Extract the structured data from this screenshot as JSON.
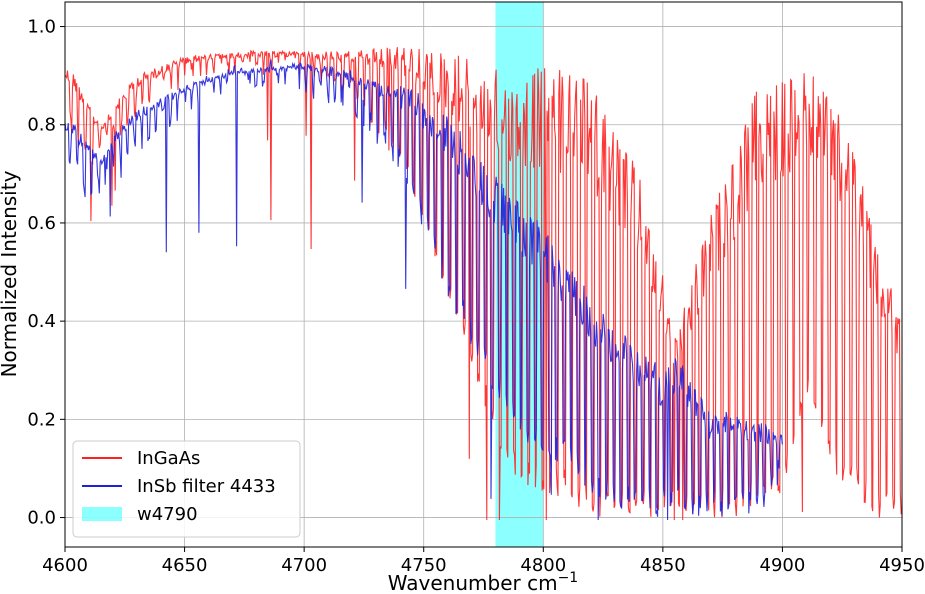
{
  "chart_data": {
    "type": "line",
    "xlabel": "Wavenumber cm",
    "xlabel_sup": "−1",
    "ylabel": "Normalized Intensity",
    "xlim": [
      4600,
      4950
    ],
    "ylim": [
      -0.06,
      1.05
    ],
    "xticks": [
      4600,
      4650,
      4700,
      4750,
      4800,
      4850,
      4900,
      4950
    ],
    "yticks": [
      0.0,
      0.2,
      0.4,
      0.6,
      0.8,
      1.0
    ],
    "xtick_labels": [
      "4600",
      "4650",
      "4700",
      "4750",
      "4800",
      "4850",
      "4900",
      "4950"
    ],
    "ytick_labels": [
      "0.0",
      "0.2",
      "0.4",
      "0.6",
      "0.8",
      "1.0"
    ],
    "grid": true,
    "legend_position": "lower-left",
    "band": {
      "name": "w4790",
      "x0": 4780,
      "x1": 4800,
      "color": "#00ffff"
    },
    "series": [
      {
        "name": "InGaAs",
        "color": "#ff2020",
        "x_range": [
          4600,
          4950
        ],
        "envelope_upper": [
          [
            4600,
            0.92
          ],
          [
            4605,
            0.9
          ],
          [
            4610,
            0.85
          ],
          [
            4615,
            0.8
          ],
          [
            4620,
            0.84
          ],
          [
            4630,
            0.9
          ],
          [
            4650,
            0.94
          ],
          [
            4680,
            0.95
          ],
          [
            4700,
            0.95
          ],
          [
            4720,
            0.95
          ],
          [
            4740,
            0.96
          ],
          [
            4760,
            0.95
          ],
          [
            4780,
            0.93
          ],
          [
            4800,
            0.92
          ],
          [
            4810,
            0.91
          ],
          [
            4820,
            0.89
          ],
          [
            4830,
            0.8
          ],
          [
            4840,
            0.7
          ],
          [
            4850,
            0.5
          ],
          [
            4855,
            0.38
          ],
          [
            4860,
            0.45
          ],
          [
            4870,
            0.62
          ],
          [
            4880,
            0.75
          ],
          [
            4890,
            0.88
          ],
          [
            4900,
            0.89
          ],
          [
            4910,
            0.91
          ],
          [
            4920,
            0.88
          ],
          [
            4930,
            0.75
          ],
          [
            4940,
            0.55
          ],
          [
            4950,
            0.4
          ]
        ],
        "envelope_lower": [
          [
            4600,
            0.8
          ],
          [
            4610,
            0.7
          ],
          [
            4620,
            0.75
          ],
          [
            4640,
            0.85
          ],
          [
            4660,
            0.9
          ],
          [
            4690,
            0.9
          ],
          [
            4720,
            0.86
          ],
          [
            4740,
            0.72
          ],
          [
            4750,
            0.6
          ],
          [
            4760,
            0.45
          ],
          [
            4770,
            0.3
          ],
          [
            4780,
            0.16
          ],
          [
            4790,
            0.06
          ],
          [
            4800,
            0.05
          ],
          [
            4810,
            0.04
          ],
          [
            4820,
            0.0
          ],
          [
            4840,
            0.0
          ],
          [
            4860,
            0.0
          ],
          [
            4880,
            0.0
          ],
          [
            4900,
            0.05
          ],
          [
            4910,
            0.25
          ],
          [
            4920,
            0.1
          ],
          [
            4930,
            0.05
          ],
          [
            4940,
            0.0
          ],
          [
            4950,
            0.0
          ]
        ]
      },
      {
        "name": "InSb filter 4433",
        "color": "#2020d8",
        "x_range": [
          4600,
          4900
        ],
        "envelope_upper": [
          [
            4600,
            0.81
          ],
          [
            4605,
            0.8
          ],
          [
            4610,
            0.76
          ],
          [
            4615,
            0.73
          ],
          [
            4620,
            0.78
          ],
          [
            4630,
            0.83
          ],
          [
            4650,
            0.88
          ],
          [
            4670,
            0.91
          ],
          [
            4690,
            0.92
          ],
          [
            4700,
            0.93
          ],
          [
            4710,
            0.92
          ],
          [
            4720,
            0.91
          ],
          [
            4740,
            0.88
          ],
          [
            4750,
            0.86
          ],
          [
            4760,
            0.82
          ],
          [
            4770,
            0.76
          ],
          [
            4780,
            0.7
          ],
          [
            4790,
            0.65
          ],
          [
            4800,
            0.6
          ],
          [
            4810,
            0.53
          ],
          [
            4820,
            0.46
          ],
          [
            4830,
            0.4
          ],
          [
            4840,
            0.35
          ],
          [
            4850,
            0.3
          ],
          [
            4855,
            0.34
          ],
          [
            4860,
            0.3
          ],
          [
            4870,
            0.21
          ],
          [
            4880,
            0.22
          ],
          [
            4890,
            0.2
          ],
          [
            4900,
            0.17
          ]
        ],
        "envelope_lower": [
          [
            4600,
            0.72
          ],
          [
            4610,
            0.62
          ],
          [
            4620,
            0.7
          ],
          [
            4640,
            0.78
          ],
          [
            4660,
            0.85
          ],
          [
            4690,
            0.88
          ],
          [
            4720,
            0.82
          ],
          [
            4740,
            0.7
          ],
          [
            4750,
            0.58
          ],
          [
            4760,
            0.45
          ],
          [
            4770,
            0.35
          ],
          [
            4780,
            0.25
          ],
          [
            4790,
            0.15
          ],
          [
            4800,
            0.13
          ],
          [
            4810,
            0.1
          ],
          [
            4820,
            0.05
          ],
          [
            4830,
            0.02
          ],
          [
            4840,
            0.0
          ],
          [
            4860,
            0.0
          ],
          [
            4880,
            0.0
          ],
          [
            4890,
            0.0
          ],
          [
            4900,
            0.08
          ]
        ]
      }
    ]
  }
}
